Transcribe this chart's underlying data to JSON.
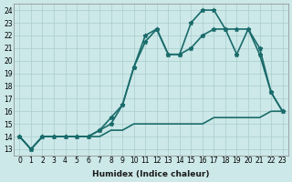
{
  "title": "",
  "xlabel": "Humidex (Indice chaleur)",
  "ylabel": "",
  "bg_color": "#cce8e8",
  "grid_color": "#aacccc",
  "line_color": "#1a6b6b",
  "xlim": [
    -0.5,
    23.5
  ],
  "ylim": [
    12.5,
    24.5
  ],
  "yticks": [
    13,
    14,
    15,
    16,
    17,
    18,
    19,
    20,
    21,
    22,
    23,
    24
  ],
  "xticks": [
    0,
    1,
    2,
    3,
    4,
    5,
    6,
    7,
    8,
    9,
    10,
    11,
    12,
    13,
    14,
    15,
    16,
    17,
    18,
    19,
    20,
    21,
    22,
    23
  ],
  "series": [
    {
      "x": [
        0,
        1,
        2,
        3,
        4,
        5,
        6,
        7,
        8,
        9,
        10,
        11,
        12,
        13,
        14,
        15,
        16,
        17,
        18,
        19,
        20,
        21,
        22,
        23
      ],
      "y": [
        14.0,
        13.0,
        14.0,
        14.0,
        14.0,
        14.0,
        14.0,
        14.5,
        15.0,
        16.5,
        19.5,
        22.0,
        22.5,
        20.5,
        20.5,
        23.0,
        24.0,
        24.0,
        22.5,
        20.5,
        22.5,
        20.5,
        17.5,
        16.0
      ],
      "marker": "*",
      "lw": 1.2
    },
    {
      "x": [
        0,
        1,
        2,
        3,
        4,
        5,
        6,
        7,
        8,
        9,
        10,
        11,
        12,
        13,
        14,
        15,
        16,
        17,
        18,
        19,
        20,
        21,
        22,
        23
      ],
      "y": [
        14.0,
        13.0,
        14.0,
        14.0,
        14.0,
        14.0,
        14.0,
        14.5,
        15.5,
        16.5,
        19.5,
        21.5,
        22.5,
        20.5,
        20.5,
        21.0,
        22.0,
        22.5,
        22.5,
        22.5,
        22.5,
        21.0,
        17.5,
        16.0
      ],
      "marker": "*",
      "lw": 1.2
    },
    {
      "x": [
        0,
        1,
        2,
        3,
        4,
        5,
        6,
        7,
        8,
        9,
        10,
        11,
        12,
        13,
        14,
        15,
        16,
        17,
        18,
        19,
        20,
        21,
        22,
        23
      ],
      "y": [
        14.0,
        13.0,
        14.0,
        14.0,
        14.0,
        14.0,
        14.0,
        14.0,
        14.5,
        14.5,
        15.0,
        15.0,
        15.0,
        15.0,
        15.0,
        15.0,
        15.0,
        15.5,
        15.5,
        15.5,
        15.5,
        15.5,
        16.0,
        16.0
      ],
      "marker": null,
      "lw": 1.2
    }
  ]
}
